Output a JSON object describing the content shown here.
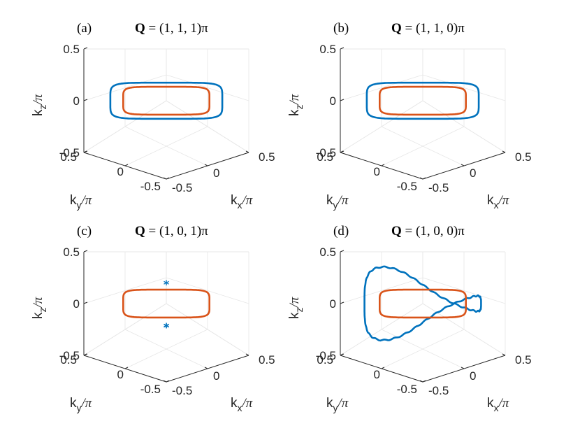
{
  "chart_data": [
    {
      "type": "line",
      "panel_label": "(a)",
      "title_vector": "Q",
      "title_rest": " = (1, 1, 1)π",
      "axes": {
        "xlabel": "k_x/π",
        "ylabel": "k_y/π",
        "zlabel": "k_z/π"
      },
      "ticks": {
        "x": [
          "-0.5",
          "0",
          "0.5"
        ],
        "y": [
          "-0.5",
          "0",
          "0.5"
        ],
        "z": [
          "-0.5",
          "0",
          "0.5"
        ]
      },
      "xlim": [
        -0.5,
        0.5
      ],
      "ylim": [
        -0.5,
        0.5
      ],
      "zlim": [
        -0.5,
        0.5
      ],
      "grid": true,
      "series": [
        {
          "color": "#0072BD",
          "curve": "planar_loop",
          "center": [
            0,
            0,
            0
          ],
          "radius": 0.48,
          "squareness": 6,
          "z_amp": 0.0
        },
        {
          "color": "#D95319",
          "curve": "planar_loop",
          "center": [
            0,
            0,
            0
          ],
          "radius": 0.37,
          "squareness": 6,
          "z_amp": 0.0
        }
      ]
    },
    {
      "type": "line",
      "panel_label": "(b)",
      "title_vector": "Q",
      "title_rest": " = (1, 1, 0)π",
      "axes": {
        "xlabel": "k_x/π",
        "ylabel": "k_y/π",
        "zlabel": "k_z/π"
      },
      "ticks": {
        "x": [
          "-0.5",
          "0",
          "0.5"
        ],
        "y": [
          "-0.5",
          "0",
          "0.5"
        ],
        "z": [
          "-0.5",
          "0",
          "0.5"
        ]
      },
      "xlim": [
        -0.5,
        0.5
      ],
      "ylim": [
        -0.5,
        0.5
      ],
      "zlim": [
        -0.5,
        0.5
      ],
      "grid": true,
      "series": [
        {
          "color": "#0072BD",
          "curve": "planar_loop",
          "center": [
            0,
            0,
            0
          ],
          "radius": 0.48,
          "squareness": 6,
          "z_amp": 0.0
        },
        {
          "color": "#D95319",
          "curve": "planar_loop",
          "center": [
            0,
            0,
            0
          ],
          "radius": 0.37,
          "squareness": 6,
          "z_amp": 0.0
        }
      ]
    },
    {
      "type": "line",
      "panel_label": "(c)",
      "title_vector": "Q",
      "title_rest": " = (1, 0, 1)π",
      "axes": {
        "xlabel": "k_x/π",
        "ylabel": "k_y/π",
        "zlabel": "k_z/π"
      },
      "ticks": {
        "x": [
          "-0.5",
          "0",
          "0.5"
        ],
        "y": [
          "-0.5",
          "0",
          "0.5"
        ],
        "z": [
          "-0.5",
          "0",
          "0.5"
        ]
      },
      "xlim": [
        -0.5,
        0.5
      ],
      "ylim": [
        -0.5,
        0.5
      ],
      "zlim": [
        -0.5,
        0.5
      ],
      "grid": true,
      "series": [
        {
          "color": "#D95319",
          "curve": "planar_loop",
          "center": [
            0,
            0,
            0
          ],
          "radius": 0.37,
          "squareness": 6,
          "z_amp": 0.0
        }
      ],
      "markers": [
        {
          "color": "#0072BD",
          "symbol": "*",
          "points": [
            [
              0.43,
              0.43,
              0.0
            ],
            [
              0.44,
              0.44,
              0.01
            ],
            [
              -0.38,
              -0.38,
              0.0
            ]
          ]
        }
      ]
    },
    {
      "type": "line",
      "panel_label": "(d)",
      "title_vector": "Q",
      "title_rest": " = (1, 0, 0)π",
      "axes": {
        "xlabel": "k_x/π",
        "ylabel": "k_y/π",
        "zlabel": "k_z/π"
      },
      "ticks": {
        "x": [
          "-0.5",
          "0",
          "0.5"
        ],
        "y": [
          "-0.5",
          "0",
          "0.5"
        ],
        "z": [
          "-0.5",
          "0",
          "0.5"
        ]
      },
      "xlim": [
        -0.5,
        0.5
      ],
      "ylim": [
        -0.5,
        0.5
      ],
      "zlim": [
        -0.5,
        0.5
      ],
      "grid": true,
      "series": [
        {
          "color": "#0072BD",
          "curve": "saddle_loop",
          "center": [
            0,
            0,
            0
          ],
          "radius": 0.5,
          "squareness": 3,
          "z_amp": 0.2,
          "noisy": true
        },
        {
          "color": "#D95319",
          "curve": "planar_loop",
          "center": [
            0,
            0,
            0
          ],
          "radius": 0.37,
          "squareness": 6,
          "z_amp": 0.0
        }
      ]
    }
  ]
}
